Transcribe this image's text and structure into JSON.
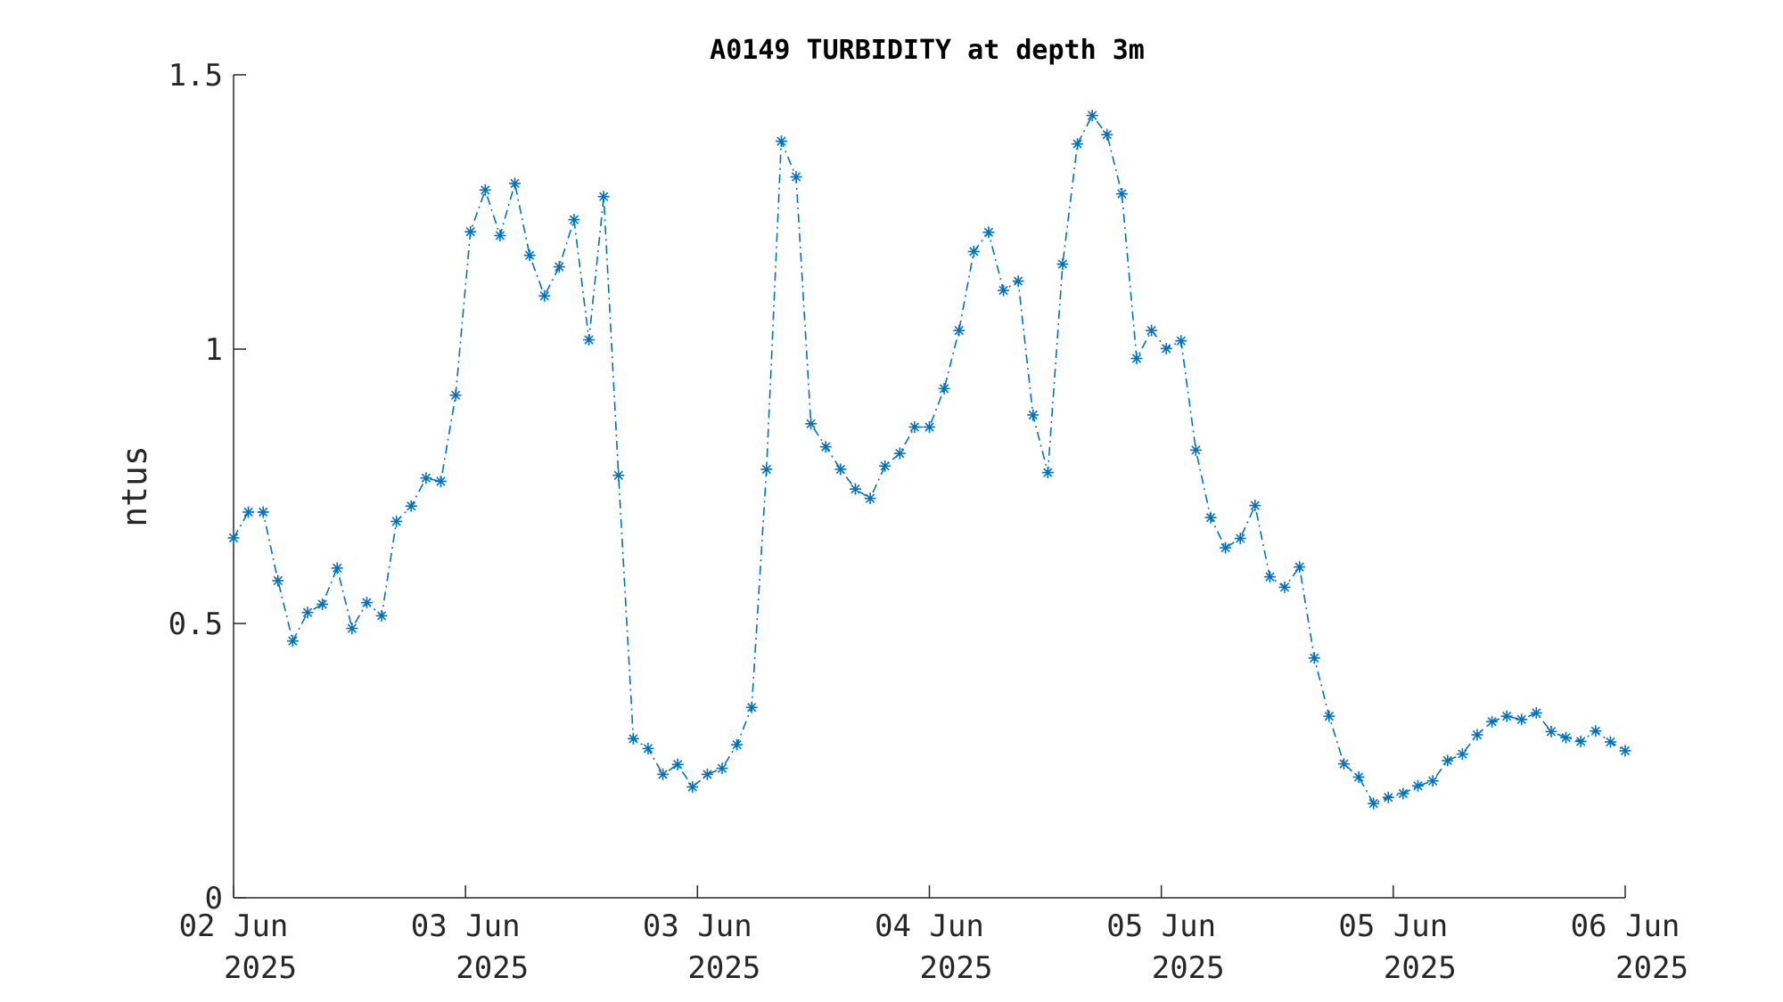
{
  "chart_data": {
    "type": "line",
    "title": "A0149 TURBIDITY at depth 3m",
    "xlabel": "",
    "ylabel": "ntus",
    "ylim": [
      0,
      1.5
    ],
    "yticks": [
      "0",
      "0.5",
      "1",
      "1.5"
    ],
    "xticks": [
      {
        "line1": "02 Jun",
        "line2": "2025"
      },
      {
        "line1": "03 Jun",
        "line2": "2025"
      },
      {
        "line1": "03 Jun",
        "line2": "2025"
      },
      {
        "line1": "04 Jun",
        "line2": "2025"
      },
      {
        "line1": "05 Jun",
        "line2": "2025"
      },
      {
        "line1": "05 Jun",
        "line2": "2025"
      },
      {
        "line1": "06 Jun",
        "line2": "2025"
      }
    ],
    "grid": false,
    "marker": "asterisk",
    "line_style": "dash-dot",
    "color": "#0072bd",
    "series": [
      {
        "values": [
          0.656,
          0.703,
          0.703,
          0.578,
          0.468,
          0.52,
          0.535,
          0.601,
          0.491,
          0.538,
          0.514,
          0.686,
          0.714,
          0.765,
          0.759,
          0.916,
          1.214,
          1.29,
          1.207,
          1.302,
          1.171,
          1.097,
          1.15,
          1.236,
          1.017,
          1.278,
          0.77,
          0.29,
          0.272,
          0.225,
          0.243,
          0.202,
          0.225,
          0.236,
          0.279,
          0.347,
          0.781,
          1.379,
          1.314,
          0.864,
          0.822,
          0.781,
          0.745,
          0.728,
          0.787,
          0.81,
          0.858,
          0.858,
          0.928,
          1.034,
          1.178,
          1.213,
          1.107,
          1.124,
          0.88,
          0.775,
          1.155,
          1.374,
          1.426,
          1.391,
          1.283,
          0.983,
          1.034,
          1.001,
          1.015,
          0.816,
          0.693,
          0.638,
          0.655,
          0.715,
          0.585,
          0.566,
          0.603,
          0.437,
          0.331,
          0.244,
          0.22,
          0.172,
          0.183,
          0.19,
          0.204,
          0.213,
          0.25,
          0.262,
          0.297,
          0.321,
          0.331,
          0.325,
          0.337,
          0.303,
          0.292,
          0.285,
          0.304,
          0.284,
          0.268
        ]
      }
    ]
  }
}
